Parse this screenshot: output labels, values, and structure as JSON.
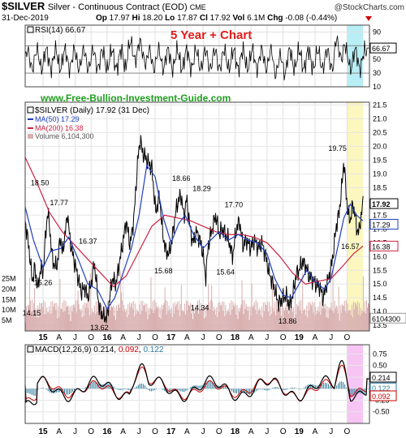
{
  "header": {
    "symbol": "$SILVER",
    "description": "Silver - Continuous Contract (EOD)",
    "exchange": "CME",
    "brand": "@StockCharts.com",
    "date": "31-Dec-2019",
    "quote": {
      "open_label": "Op",
      "open": "17.97",
      "high_label": "Hi",
      "high": "18.20",
      "low_label": "Lo",
      "low": "17.87",
      "close_label": "Cl",
      "close": "17.92",
      "volume_label": "Vol",
      "volume": "6.1M",
      "change_label": "Chg",
      "change": "-0.08 (-0.44%)"
    },
    "caption": "5 Year + Chart",
    "website": "www.Free-Bullion-Investment-Guide.com"
  },
  "colors": {
    "price": "#000000",
    "ma50": "#1f3fbf",
    "ma200": "#cc2244",
    "volume": "#d9b0b0",
    "macd_hist": "#2a7a9a",
    "macd_signal": "#cc0000",
    "caption": "#e31b1b",
    "website": "#1e9e1e",
    "highlight_rsi": "#b8eef5",
    "highlight_price": "#fbf7be",
    "highlight_macd": "#f6c5f3"
  },
  "chart_data": [
    {
      "type": "line",
      "panel": "rsi",
      "legend": "RSI(14) 66.67",
      "last_value": 66.67,
      "ylim": [
        10,
        100
      ],
      "y_ticks": [
        10,
        30,
        50,
        70,
        90
      ],
      "y_tick_labels": [
        "10",
        "30",
        "50",
        "70",
        "90"
      ],
      "last_label": "66.67"
    },
    {
      "type": "line",
      "panel": "price",
      "legend": {
        "price": "$SILVER (Daily) 17.92 (31 Dec)",
        "ma50": "MA(50) 17.29",
        "ma200": "MA(200) 16.38",
        "volume": "Volume 6,104,300"
      },
      "ylim": [
        13.3,
        21.6
      ],
      "y_ticks": [
        13.5,
        14.0,
        14.5,
        15.0,
        15.5,
        16.0,
        16.5,
        17.0,
        17.5,
        18.0,
        18.5,
        19.0,
        19.5,
        20.0,
        20.5,
        21.0,
        21.5
      ],
      "y_tick_labels": [
        "13.5",
        "14.0",
        "14.5",
        "15.0",
        "15.5",
        "16.0",
        "16.5",
        "17.0",
        "17.5",
        "18.0",
        "18.5",
        "19.0",
        "19.5",
        "20.0",
        "20.5",
        "21.0",
        "21.5"
      ],
      "last_labels": [
        "17.92",
        "17.29",
        "16.38",
        "6104300"
      ],
      "volume_ticks": [
        "25M",
        "20M",
        "15M",
        "10M",
        "5M"
      ],
      "volume_tick_values": [
        25,
        20,
        15,
        10,
        5
      ],
      "volume_max_m": 38,
      "x_start": 2014.72,
      "x_end": 2020.1,
      "highlight_start": 2019.75,
      "highlight_end": 2020.0,
      "price_points": [
        [
          2014.72,
          17.3
        ],
        [
          2014.78,
          16.3
        ],
        [
          2014.83,
          15.1
        ],
        [
          2014.87,
          15.6
        ],
        [
          2014.92,
          14.8
        ],
        [
          2014.96,
          15.6
        ],
        [
          2015.0,
          15.4
        ],
        [
          2015.04,
          16.8
        ],
        [
          2015.07,
          17.6
        ],
        [
          2015.1,
          17.2
        ],
        [
          2015.13,
          16.2
        ],
        [
          2015.18,
          15.6
        ],
        [
          2015.23,
          15.8
        ],
        [
          2015.27,
          16.8
        ],
        [
          2015.3,
          16.1
        ],
        [
          2015.35,
          16.9
        ],
        [
          2015.38,
          17.6
        ],
        [
          2015.42,
          16.6
        ],
        [
          2015.48,
          15.9
        ],
        [
          2015.55,
          15.2
        ],
        [
          2015.6,
          14.7
        ],
        [
          2015.65,
          14.9
        ],
        [
          2015.7,
          14.5
        ],
        [
          2015.75,
          15.0
        ],
        [
          2015.8,
          15.8
        ],
        [
          2015.84,
          14.9
        ],
        [
          2015.88,
          14.1
        ],
        [
          2015.95,
          13.8
        ],
        [
          2016.0,
          13.8
        ],
        [
          2016.03,
          14.3
        ],
        [
          2016.08,
          15.2
        ],
        [
          2016.14,
          15.0
        ],
        [
          2016.18,
          15.6
        ],
        [
          2016.24,
          16.4
        ],
        [
          2016.3,
          17.3
        ],
        [
          2016.36,
          16.4
        ],
        [
          2016.42,
          17.4
        ],
        [
          2016.48,
          19.5
        ],
        [
          2016.52,
          20.3
        ],
        [
          2016.55,
          19.8
        ],
        [
          2016.6,
          19.6
        ],
        [
          2016.65,
          19.4
        ],
        [
          2016.7,
          19.2
        ],
        [
          2016.76,
          17.6
        ],
        [
          2016.82,
          18.2
        ],
        [
          2016.87,
          16.8
        ],
        [
          2016.92,
          16.2
        ],
        [
          2016.97,
          16.1
        ],
        [
          2017.02,
          16.7
        ],
        [
          2017.07,
          17.6
        ],
        [
          2017.12,
          18.1
        ],
        [
          2017.16,
          18.2
        ],
        [
          2017.2,
          17.4
        ],
        [
          2017.24,
          18.1
        ],
        [
          2017.3,
          17.0
        ],
        [
          2017.34,
          16.5
        ],
        [
          2017.4,
          16.9
        ],
        [
          2017.45,
          16.6
        ],
        [
          2017.5,
          16.1
        ],
        [
          2017.54,
          15.2
        ],
        [
          2017.58,
          16.4
        ],
        [
          2017.64,
          17.0
        ],
        [
          2017.7,
          17.5
        ],
        [
          2017.75,
          16.8
        ],
        [
          2017.8,
          17.0
        ],
        [
          2017.85,
          16.8
        ],
        [
          2017.9,
          16.6
        ],
        [
          2017.96,
          16.0
        ],
        [
          2018.02,
          17.0
        ],
        [
          2018.07,
          17.3
        ],
        [
          2018.12,
          16.4
        ],
        [
          2018.18,
          16.6
        ],
        [
          2018.24,
          16.3
        ],
        [
          2018.3,
          16.6
        ],
        [
          2018.36,
          16.3
        ],
        [
          2018.42,
          16.5
        ],
        [
          2018.48,
          16.0
        ],
        [
          2018.53,
          15.4
        ],
        [
          2018.58,
          15.1
        ],
        [
          2018.63,
          14.7
        ],
        [
          2018.68,
          14.3
        ],
        [
          2018.72,
          14.4
        ],
        [
          2018.76,
          14.5
        ],
        [
          2018.8,
          14.6
        ],
        [
          2018.85,
          14.2
        ],
        [
          2018.9,
          14.6
        ],
        [
          2018.96,
          15.4
        ],
        [
          2019.0,
          15.5
        ],
        [
          2019.05,
          15.8
        ],
        [
          2019.1,
          15.7
        ],
        [
          2019.15,
          15.3
        ],
        [
          2019.2,
          15.2
        ],
        [
          2019.26,
          15.0
        ],
        [
          2019.32,
          14.9
        ],
        [
          2019.38,
          14.5
        ],
        [
          2019.42,
          14.9
        ],
        [
          2019.46,
          15.2
        ],
        [
          2019.5,
          15.6
        ],
        [
          2019.54,
          16.2
        ],
        [
          2019.58,
          17.1
        ],
        [
          2019.62,
          17.5
        ],
        [
          2019.66,
          18.3
        ],
        [
          2019.7,
          19.5
        ],
        [
          2019.73,
          18.5
        ],
        [
          2019.76,
          17.6
        ],
        [
          2019.8,
          17.3
        ],
        [
          2019.84,
          17.9
        ],
        [
          2019.87,
          17.6
        ],
        [
          2019.9,
          17.0
        ],
        [
          2019.94,
          16.9
        ],
        [
          2019.97,
          17.5
        ],
        [
          2020.0,
          17.92
        ]
      ],
      "ma50_points": [
        [
          2014.72,
          17.8
        ],
        [
          2014.85,
          16.6
        ],
        [
          2015.0,
          15.6
        ],
        [
          2015.12,
          16.2
        ],
        [
          2015.28,
          16.3
        ],
        [
          2015.4,
          16.7
        ],
        [
          2015.55,
          15.9
        ],
        [
          2015.7,
          15.0
        ],
        [
          2015.85,
          14.8
        ],
        [
          2016.0,
          14.1
        ],
        [
          2016.12,
          14.5
        ],
        [
          2016.25,
          15.4
        ],
        [
          2016.38,
          16.3
        ],
        [
          2016.5,
          17.5
        ],
        [
          2016.62,
          19.3
        ],
        [
          2016.75,
          18.9
        ],
        [
          2016.88,
          17.4
        ],
        [
          2017.0,
          16.5
        ],
        [
          2017.12,
          17.2
        ],
        [
          2017.22,
          17.5
        ],
        [
          2017.35,
          16.8
        ],
        [
          2017.5,
          16.3
        ],
        [
          2017.62,
          16.6
        ],
        [
          2017.75,
          16.9
        ],
        [
          2017.9,
          16.6
        ],
        [
          2018.05,
          16.8
        ],
        [
          2018.2,
          16.6
        ],
        [
          2018.35,
          16.5
        ],
        [
          2018.5,
          16.1
        ],
        [
          2018.62,
          15.2
        ],
        [
          2018.75,
          14.6
        ],
        [
          2018.88,
          14.5
        ],
        [
          2019.0,
          15.0
        ],
        [
          2019.12,
          15.5
        ],
        [
          2019.25,
          15.1
        ],
        [
          2019.4,
          14.8
        ],
        [
          2019.5,
          15.2
        ],
        [
          2019.6,
          16.3
        ],
        [
          2019.7,
          17.4
        ],
        [
          2019.8,
          17.9
        ],
        [
          2019.9,
          17.5
        ],
        [
          2020.0,
          17.29
        ]
      ],
      "ma200_points": [
        [
          2014.72,
          19.6
        ],
        [
          2014.9,
          18.7
        ],
        [
          2015.1,
          17.6
        ],
        [
          2015.3,
          16.9
        ],
        [
          2015.5,
          16.4
        ],
        [
          2015.7,
          15.9
        ],
        [
          2015.9,
          15.4
        ],
        [
          2016.1,
          14.9
        ],
        [
          2016.3,
          15.3
        ],
        [
          2016.5,
          16.2
        ],
        [
          2016.7,
          17.1
        ],
        [
          2016.9,
          17.5
        ],
        [
          2017.1,
          17.4
        ],
        [
          2017.3,
          17.3
        ],
        [
          2017.5,
          17.1
        ],
        [
          2017.7,
          16.9
        ],
        [
          2017.9,
          16.8
        ],
        [
          2018.1,
          16.8
        ],
        [
          2018.3,
          16.7
        ],
        [
          2018.5,
          16.5
        ],
        [
          2018.7,
          16.0
        ],
        [
          2018.9,
          15.4
        ],
        [
          2019.1,
          15.0
        ],
        [
          2019.3,
          15.1
        ],
        [
          2019.5,
          15.2
        ],
        [
          2019.7,
          15.7
        ],
        [
          2019.85,
          16.1
        ],
        [
          2020.0,
          16.38
        ]
      ],
      "annotations": [
        {
          "label": "14.15",
          "x": 2014.82,
          "y": 14.15
        },
        {
          "label": "18.50",
          "x": 2014.95,
          "y": 18.5
        },
        {
          "label": "15.26",
          "x": 2015.0,
          "y": 15.26
        },
        {
          "label": "17.77",
          "x": 2015.25,
          "y": 17.77
        },
        {
          "label": "16.37",
          "x": 2015.7,
          "y": 16.37
        },
        {
          "label": "13.62",
          "x": 2015.88,
          "y": 13.62
        },
        {
          "label": "15.68",
          "x": 2016.88,
          "y": 15.68
        },
        {
          "label": "18.66",
          "x": 2017.16,
          "y": 18.66
        },
        {
          "label": "14.34",
          "x": 2017.45,
          "y": 14.34
        },
        {
          "label": "18.29",
          "x": 2017.48,
          "y": 18.29
        },
        {
          "label": "15.64",
          "x": 2017.85,
          "y": 15.64
        },
        {
          "label": "17.70",
          "x": 2017.98,
          "y": 17.7
        },
        {
          "label": "13.86",
          "x": 2018.82,
          "y": 13.86
        },
        {
          "label": "19.75",
          "x": 2019.6,
          "y": 19.75
        },
        {
          "label": "16.57",
          "x": 2019.8,
          "y": 16.57
        }
      ]
    },
    {
      "type": "line",
      "panel": "macd",
      "legend": {
        "name": "MACD(12,26,9)",
        "macd": "0.214",
        "signal": "0.092",
        "hist": "0.122"
      },
      "ylim": [
        -0.75,
        0.95
      ],
      "y_ticks": [
        0.75,
        0.5,
        0.25,
        0.0,
        -0.25,
        -0.5
      ],
      "y_tick_labels": [
        "0.75",
        "0.50",
        "0.25",
        "0.00",
        "-0.25",
        "-0.50"
      ],
      "last_labels": [
        "0.214",
        "0.122",
        "0.092"
      ]
    }
  ],
  "x_axis": {
    "labels": [
      "15",
      "A",
      "J",
      "O",
      "16",
      "A",
      "J",
      "O",
      "17",
      "A",
      "J",
      "O",
      "18",
      "A",
      "J",
      "O",
      "19",
      "A",
      "J",
      "O"
    ],
    "positions": [
      2015.0,
      2015.25,
      2015.5,
      2015.75,
      2016.0,
      2016.25,
      2016.5,
      2016.75,
      2017.0,
      2017.25,
      2017.5,
      2017.75,
      2018.0,
      2018.25,
      2018.5,
      2018.75,
      2019.0,
      2019.25,
      2019.5,
      2019.75
    ]
  }
}
